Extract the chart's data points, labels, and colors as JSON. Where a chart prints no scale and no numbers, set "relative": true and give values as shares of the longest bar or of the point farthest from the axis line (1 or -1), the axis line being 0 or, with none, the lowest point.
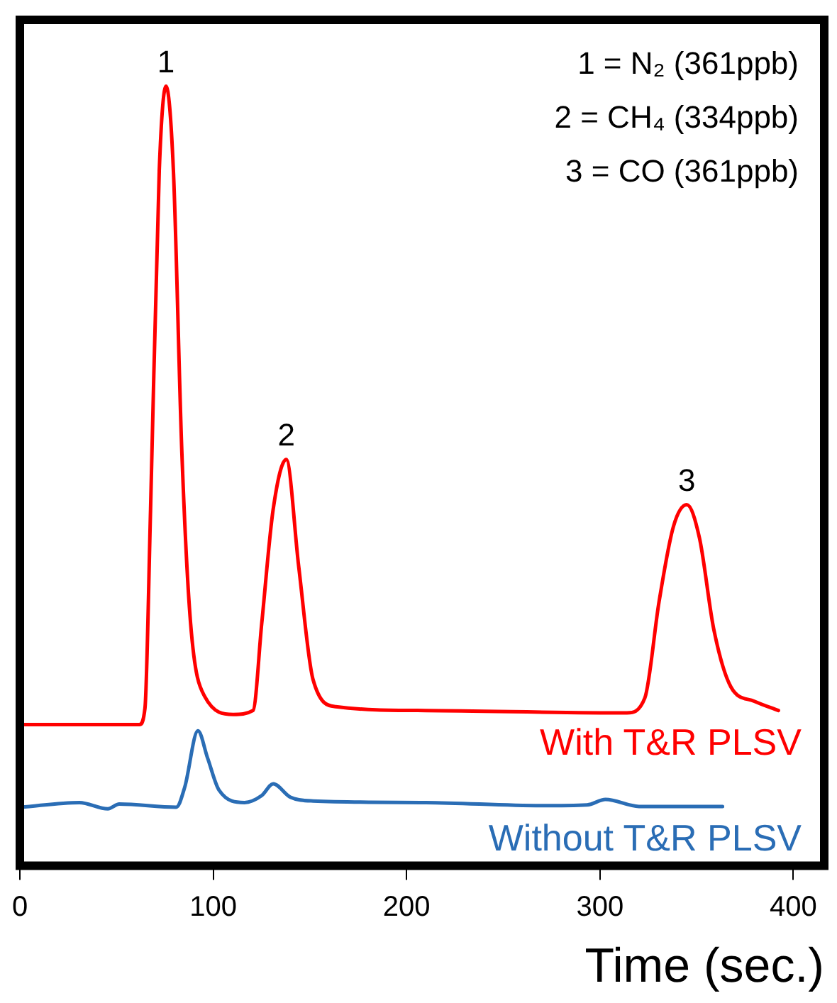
{
  "chart_data": {
    "type": "line",
    "relative": true,
    "xlabel": "Time (sec.)",
    "xlim": [
      0,
      416
    ],
    "xticks": [
      0,
      100,
      200,
      300,
      400
    ],
    "grid": false,
    "legend": false,
    "marker": "none",
    "line_style": "solid",
    "series": [
      {
        "name": "With T&R PLSV",
        "color": "#ff0000",
        "x": [
          0.7,
          61.8,
          64.7,
          67.6,
          72.1,
          75.6,
          79.4,
          83.8,
          88.3,
          95.6,
          110.4,
          120.6,
          125.1,
          131,
          137.8,
          144.2,
          151.6,
          163.4,
          210,
          314,
          323.2,
          330.6,
          338,
          344.9,
          351.5,
          358.9,
          367.8,
          379.7,
          392.3
        ],
        "values": [
          0.181,
          0.181,
          0.202,
          0.457,
          0.892,
          1.0,
          0.892,
          0.529,
          0.311,
          0.217,
          0.194,
          0.199,
          0.311,
          0.457,
          0.521,
          0.384,
          0.239,
          0.204,
          0.199,
          0.196,
          0.215,
          0.339,
          0.435,
          0.463,
          0.42,
          0.303,
          0.229,
          0.211,
          0.199
        ]
      },
      {
        "name": "Without T&R PLSV",
        "color": "#2a6db5",
        "x": [
          0.7,
          30.8,
          45.5,
          51.4,
          80.9,
          85.3,
          92.1,
          97.1,
          103,
          116.2,
          125.1,
          131,
          139.8,
          151.6,
          210,
          269.5,
          293.4,
          302.9,
          320.2,
          363.4
        ],
        "values": [
          0.075,
          0.081,
          0.073,
          0.079,
          0.075,
          0.101,
          0.173,
          0.138,
          0.097,
          0.081,
          0.09,
          0.105,
          0.088,
          0.083,
          0.081,
          0.077,
          0.078,
          0.085,
          0.076,
          0.076
        ]
      }
    ],
    "annotations": [
      {
        "text": "1",
        "x": 75.6,
        "y": 1.0
      },
      {
        "text": "2",
        "x": 137.8,
        "y": 0.521
      },
      {
        "text": "3",
        "x": 344.9,
        "y": 0.463
      },
      "1 = N₂ (361ppb)",
      "2 = CH₄ (334ppb)",
      "3 = CO (361ppb)"
    ]
  }
}
